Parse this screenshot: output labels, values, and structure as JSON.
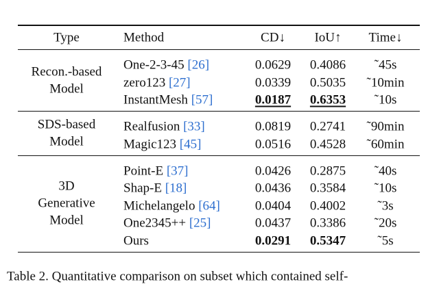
{
  "table": {
    "header": [
      "Type",
      "Method",
      "CD↓",
      "IoU↑",
      "Time↓"
    ],
    "groups": [
      {
        "type": [
          "Recon.-based",
          "Model"
        ],
        "rows": [
          {
            "method": "One-2-3-45",
            "ref": "[26]",
            "cd": {
              "text": "0.0629"
            },
            "iou": {
              "text": "0.4086"
            },
            "time": "˜45s"
          },
          {
            "method": "zero123",
            "ref": "[27]",
            "cd": {
              "text": "0.0339"
            },
            "iou": {
              "text": "0.5035"
            },
            "time": "˜10min"
          },
          {
            "method": "InstantMesh",
            "ref": "[57]",
            "cd": {
              "text": "0.0187",
              "bold": true,
              "underline": true
            },
            "iou": {
              "text": "0.6353",
              "bold": true,
              "underline": true
            },
            "time": "˜10s"
          }
        ]
      },
      {
        "type": [
          "SDS-based",
          "Model"
        ],
        "rows": [
          {
            "method": "Realfusion",
            "ref": "[33]",
            "cd": {
              "text": "0.0819"
            },
            "iou": {
              "text": "0.2741"
            },
            "time": "˜90min"
          },
          {
            "method": "Magic123",
            "ref": "[45]",
            "cd": {
              "text": "0.0516"
            },
            "iou": {
              "text": "0.4528"
            },
            "time": "˜60min"
          }
        ]
      },
      {
        "type": [
          "3D",
          "Generative",
          "Model"
        ],
        "rows": [
          {
            "method": "Point-E",
            "ref": "[37]",
            "cd": {
              "text": "0.0426"
            },
            "iou": {
              "text": "0.2875"
            },
            "time": "˜40s"
          },
          {
            "method": "Shap-E",
            "ref": "[18]",
            "cd": {
              "text": "0.0436"
            },
            "iou": {
              "text": "0.3584"
            },
            "time": "˜10s"
          },
          {
            "method": "Michelangelo",
            "ref": "[64]",
            "cd": {
              "text": "0.0404"
            },
            "iou": {
              "text": "0.4002"
            },
            "time": "˜3s"
          },
          {
            "method": "One2345++",
            "ref": "[25]",
            "cd": {
              "text": "0.0437"
            },
            "iou": {
              "text": "0.3386"
            },
            "time": "˜20s"
          },
          {
            "method": "Ours",
            "cd": {
              "text": "0.0291",
              "bold": true
            },
            "iou": {
              "text": "0.5347",
              "bold": true
            },
            "time": "˜5s"
          }
        ]
      }
    ]
  },
  "caption": "Table 2. Quantitative comparison on subset which contained self-"
}
